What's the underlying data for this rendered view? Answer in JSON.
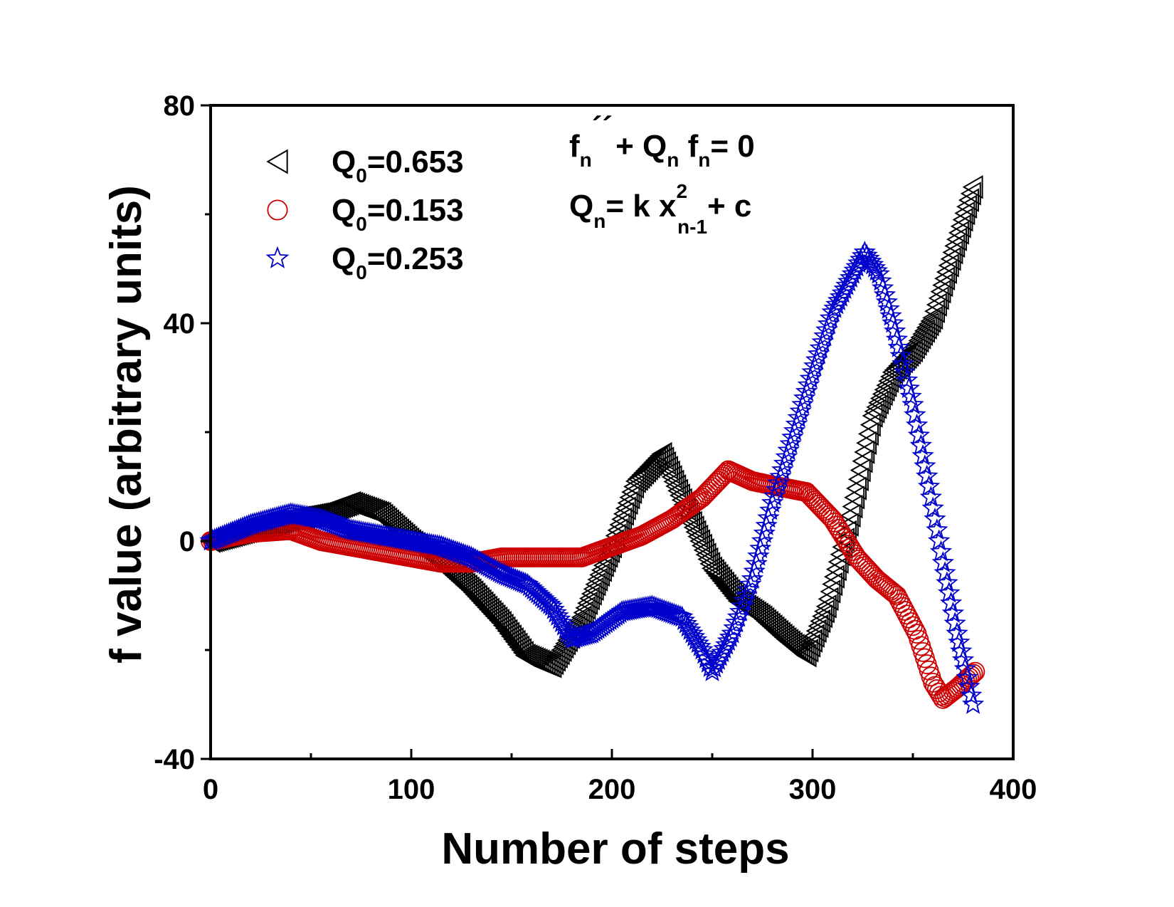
{
  "chart_data": {
    "type": "scatter",
    "title": "",
    "xlabel": "Number of steps",
    "ylabel": "f value (arbitrary units)",
    "xlim": [
      0,
      400
    ],
    "ylim": [
      -40,
      80
    ],
    "xticks": [
      0,
      100,
      200,
      300,
      400
    ],
    "yticks": [
      -40,
      0,
      40,
      80
    ],
    "x_tick_labels": [
      "0",
      "100",
      "200",
      "300",
      "400"
    ],
    "y_tick_labels": [
      "-40",
      "0",
      "40",
      "80"
    ],
    "grid": false,
    "legend_position": "top-left",
    "equations": {
      "line1": {
        "f": "f",
        "n1": "n",
        "primes": "´´",
        "plus": "+ Q",
        "n2": "n",
        "f2": " f",
        "n3": "n",
        "rest": "= 0"
      },
      "line2": {
        "q": "Q",
        "n1": "n",
        "rest1": "= k x",
        "sup": "2",
        "sub2": "n-1",
        "rest2": "+ c"
      }
    },
    "series": [
      {
        "name": "Q0=0.653",
        "legend": {
          "q": "Q",
          "sub": "0",
          "value": "=0.653"
        },
        "marker": "triangle-left",
        "color": "#000000",
        "points": [
          [
            0,
            0
          ],
          [
            20,
            2
          ],
          [
            40,
            4
          ],
          [
            55,
            5
          ],
          [
            70,
            7
          ],
          [
            85,
            5
          ],
          [
            100,
            0
          ],
          [
            115,
            -4
          ],
          [
            130,
            -9
          ],
          [
            145,
            -15
          ],
          [
            157,
            -21
          ],
          [
            170,
            -23
          ],
          [
            185,
            -14
          ],
          [
            200,
            -1
          ],
          [
            212,
            11
          ],
          [
            225,
            16
          ],
          [
            238,
            5
          ],
          [
            250,
            -5
          ],
          [
            263,
            -11
          ],
          [
            275,
            -14
          ],
          [
            287,
            -18
          ],
          [
            297,
            -21
          ],
          [
            307,
            -12
          ],
          [
            318,
            3
          ],
          [
            330,
            23
          ],
          [
            340,
            31
          ],
          [
            350,
            35
          ],
          [
            360,
            41
          ],
          [
            370,
            53
          ],
          [
            380,
            65
          ]
        ]
      },
      {
        "name": "Q0=0.153",
        "legend": {
          "q": "Q",
          "sub": "0",
          "value": "=0.153"
        },
        "marker": "circle",
        "color": "#cc0000",
        "points": [
          [
            0,
            0
          ],
          [
            20,
            1.5
          ],
          [
            40,
            2
          ],
          [
            55,
            0
          ],
          [
            70,
            -1
          ],
          [
            85,
            -2
          ],
          [
            100,
            -3
          ],
          [
            115,
            -4
          ],
          [
            130,
            -4
          ],
          [
            145,
            -3
          ],
          [
            165,
            -3
          ],
          [
            185,
            -3
          ],
          [
            200,
            -1
          ],
          [
            215,
            1
          ],
          [
            230,
            4
          ],
          [
            245,
            8
          ],
          [
            258,
            13
          ],
          [
            270,
            11
          ],
          [
            283,
            10
          ],
          [
            297,
            9
          ],
          [
            310,
            4
          ],
          [
            322,
            -3
          ],
          [
            332,
            -7
          ],
          [
            342,
            -10
          ],
          [
            352,
            -17
          ],
          [
            360,
            -26
          ],
          [
            365,
            -29
          ],
          [
            372,
            -27
          ],
          [
            381,
            -24
          ]
        ]
      },
      {
        "name": "Q0=0.253",
        "legend": {
          "q": "Q",
          "sub": "0",
          "value": "=0.253"
        },
        "marker": "star",
        "color": "#0000cc",
        "points": [
          [
            0,
            0
          ],
          [
            20,
            3
          ],
          [
            40,
            5
          ],
          [
            55,
            4
          ],
          [
            70,
            2
          ],
          [
            85,
            1
          ],
          [
            100,
            0
          ],
          [
            115,
            -1
          ],
          [
            130,
            -3
          ],
          [
            145,
            -6
          ],
          [
            158,
            -8
          ],
          [
            170,
            -12
          ],
          [
            180,
            -18
          ],
          [
            190,
            -17
          ],
          [
            205,
            -13
          ],
          [
            220,
            -12
          ],
          [
            235,
            -14
          ],
          [
            245,
            -20
          ],
          [
            250,
            -24
          ],
          [
            260,
            -17
          ],
          [
            270,
            -7
          ],
          [
            280,
            7
          ],
          [
            290,
            19
          ],
          [
            300,
            31
          ],
          [
            310,
            42
          ],
          [
            320,
            49
          ],
          [
            326,
            53
          ],
          [
            333,
            49
          ],
          [
            340,
            40
          ],
          [
            350,
            25
          ],
          [
            358,
            10
          ],
          [
            365,
            -4
          ],
          [
            372,
            -17
          ],
          [
            380,
            -30
          ]
        ]
      }
    ]
  }
}
